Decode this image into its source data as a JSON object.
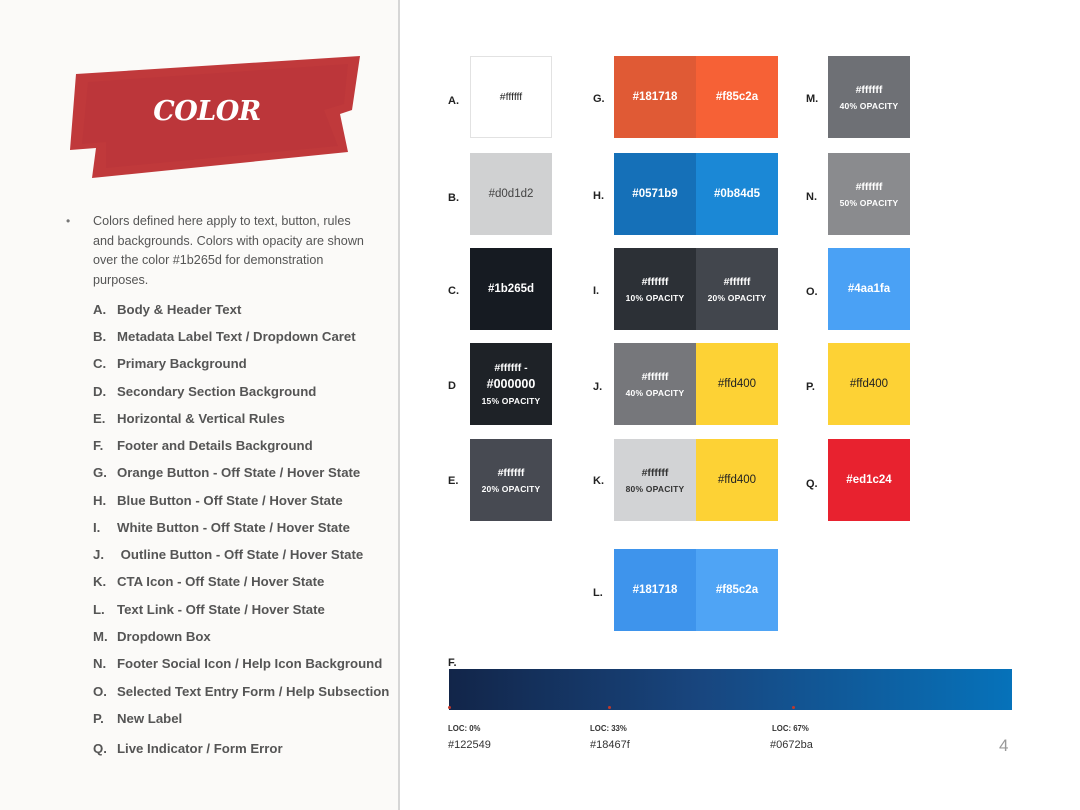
{
  "title": "COLOR",
  "intro": "Colors defined here apply to text, button, rules and backgrounds. Colors with opacity are shown over the color #1b265d for demonstration purposes.",
  "intro_lines": [
    "Colors defined here apply to text, button, rules",
    "and backgrounds. Colors with opacity are shown",
    "over the color #1b265d for demonstration",
    "purposes."
  ],
  "bullet": "•",
  "legend": [
    {
      "key": "A.",
      "text": "Body & Header Text"
    },
    {
      "key": "B.",
      "text": "Metadata Label Text / Dropdown Caret"
    },
    {
      "key": "C.",
      "text": "Primary Background"
    },
    {
      "key": "D.",
      "text": "Secondary Section Background"
    },
    {
      "key": "E.",
      "text": "Horizontal & Vertical Rules"
    },
    {
      "key": "F.",
      "text": "Footer and Details Background"
    },
    {
      "key": "G.",
      "text": "Orange Button - Off State / Hover State"
    },
    {
      "key": "H.",
      "text": "Blue Button - Off State / Hover State"
    },
    {
      "key": "I.",
      "text": "White Button - Off State / Hover State"
    },
    {
      "key": "J.",
      "text": " Outline Button - Off State / Hover State"
    },
    {
      "key": "K.",
      "text": "CTA Icon - Off State / Hover State"
    },
    {
      "key": "L.",
      "text": "Text Link - Off State / Hover State"
    },
    {
      "key": "M.",
      "text": "Dropdown Box"
    },
    {
      "key": "N.",
      "text": "Footer Social Icon / Help Icon Background"
    },
    {
      "key": "O.",
      "text": "Selected Text Entry Form / Help Subsection"
    },
    {
      "key": "P.",
      "text": "New Label"
    },
    {
      "key": "Q.",
      "text": "Live Indicator / Form Error"
    }
  ],
  "labels": {
    "A": "A.",
    "B": "B.",
    "C": "C.",
    "D": "D",
    "E": "E.",
    "F": "F.",
    "G": "G.",
    "H": "H.",
    "I": "I.",
    "J": "J.",
    "K": "K.",
    "L": "L.",
    "M": "M.",
    "N": "N.",
    "O": "O.",
    "P": "P.",
    "Q": "Q."
  },
  "swatches": {
    "A": {
      "hex": "#ffffff",
      "bg": "#ffffff"
    },
    "B": {
      "hex": "#d0d1d2",
      "bg": "#d0d1d2"
    },
    "C": {
      "hex": "#1b265d",
      "bg": "#161b22"
    },
    "D": {
      "hex_top": "#ffffff -",
      "hex": "#000000",
      "opacity": "15% OPACITY",
      "bg": "#1e2227"
    },
    "E": {
      "hex": "#ffffff",
      "opacity": "20% OPACITY",
      "bg": "#474a52"
    },
    "G1": {
      "hex": "#181718",
      "bg": "#e05a35"
    },
    "G2": {
      "hex": "#f85c2a",
      "bg": "#f66136"
    },
    "H1": {
      "hex": "#0571b9",
      "bg": "#1570b8"
    },
    "H2": {
      "hex": "#0b84d5",
      "bg": "#1b88d6"
    },
    "I1": {
      "hex": "#ffffff",
      "opacity": "10% OPACITY",
      "bg": "#2c3036"
    },
    "I2": {
      "hex": "#ffffff",
      "opacity": "20% OPACITY",
      "bg": "#42464d"
    },
    "J1": {
      "hex": "#ffffff",
      "opacity": "40% OPACITY",
      "bg": "#76777b"
    },
    "J2": {
      "hex": "#ffd400",
      "bg": "#fdd235"
    },
    "K1": {
      "hex": "#ffffff",
      "opacity": "80% OPACITY",
      "bg": "#d2d3d5"
    },
    "K2": {
      "hex": "#ffd400",
      "bg": "#fdd235"
    },
    "L1": {
      "hex": "#181718",
      "bg": "#3e94ec"
    },
    "L2": {
      "hex": "#f85c2a",
      "bg": "#4fa4f5"
    },
    "M": {
      "hex": "#ffffff",
      "opacity": "40% OPACITY",
      "bg": "#6e7075"
    },
    "N": {
      "hex": "#ffffff",
      "opacity": "50% OPACITY",
      "bg": "#8a8b8e"
    },
    "O": {
      "hex": "#4aa1fa",
      "bg": "#4aa1f5"
    },
    "P": {
      "hex": "#ffd400",
      "bg": "#fdd235"
    },
    "Q": {
      "hex": "#ed1c24",
      "bg": "#e8222f"
    }
  },
  "gradient": {
    "stops": [
      {
        "loc": "LOC: 0%",
        "hex": "#122549"
      },
      {
        "loc": "LOC: 33%",
        "hex": "#18467f"
      },
      {
        "loc": "LOC: 67%",
        "hex": "#0672ba"
      }
    ]
  },
  "page_number": "4",
  "colors": {
    "banner_red": "#c0393b",
    "dark_text_swatch": "#222222"
  }
}
